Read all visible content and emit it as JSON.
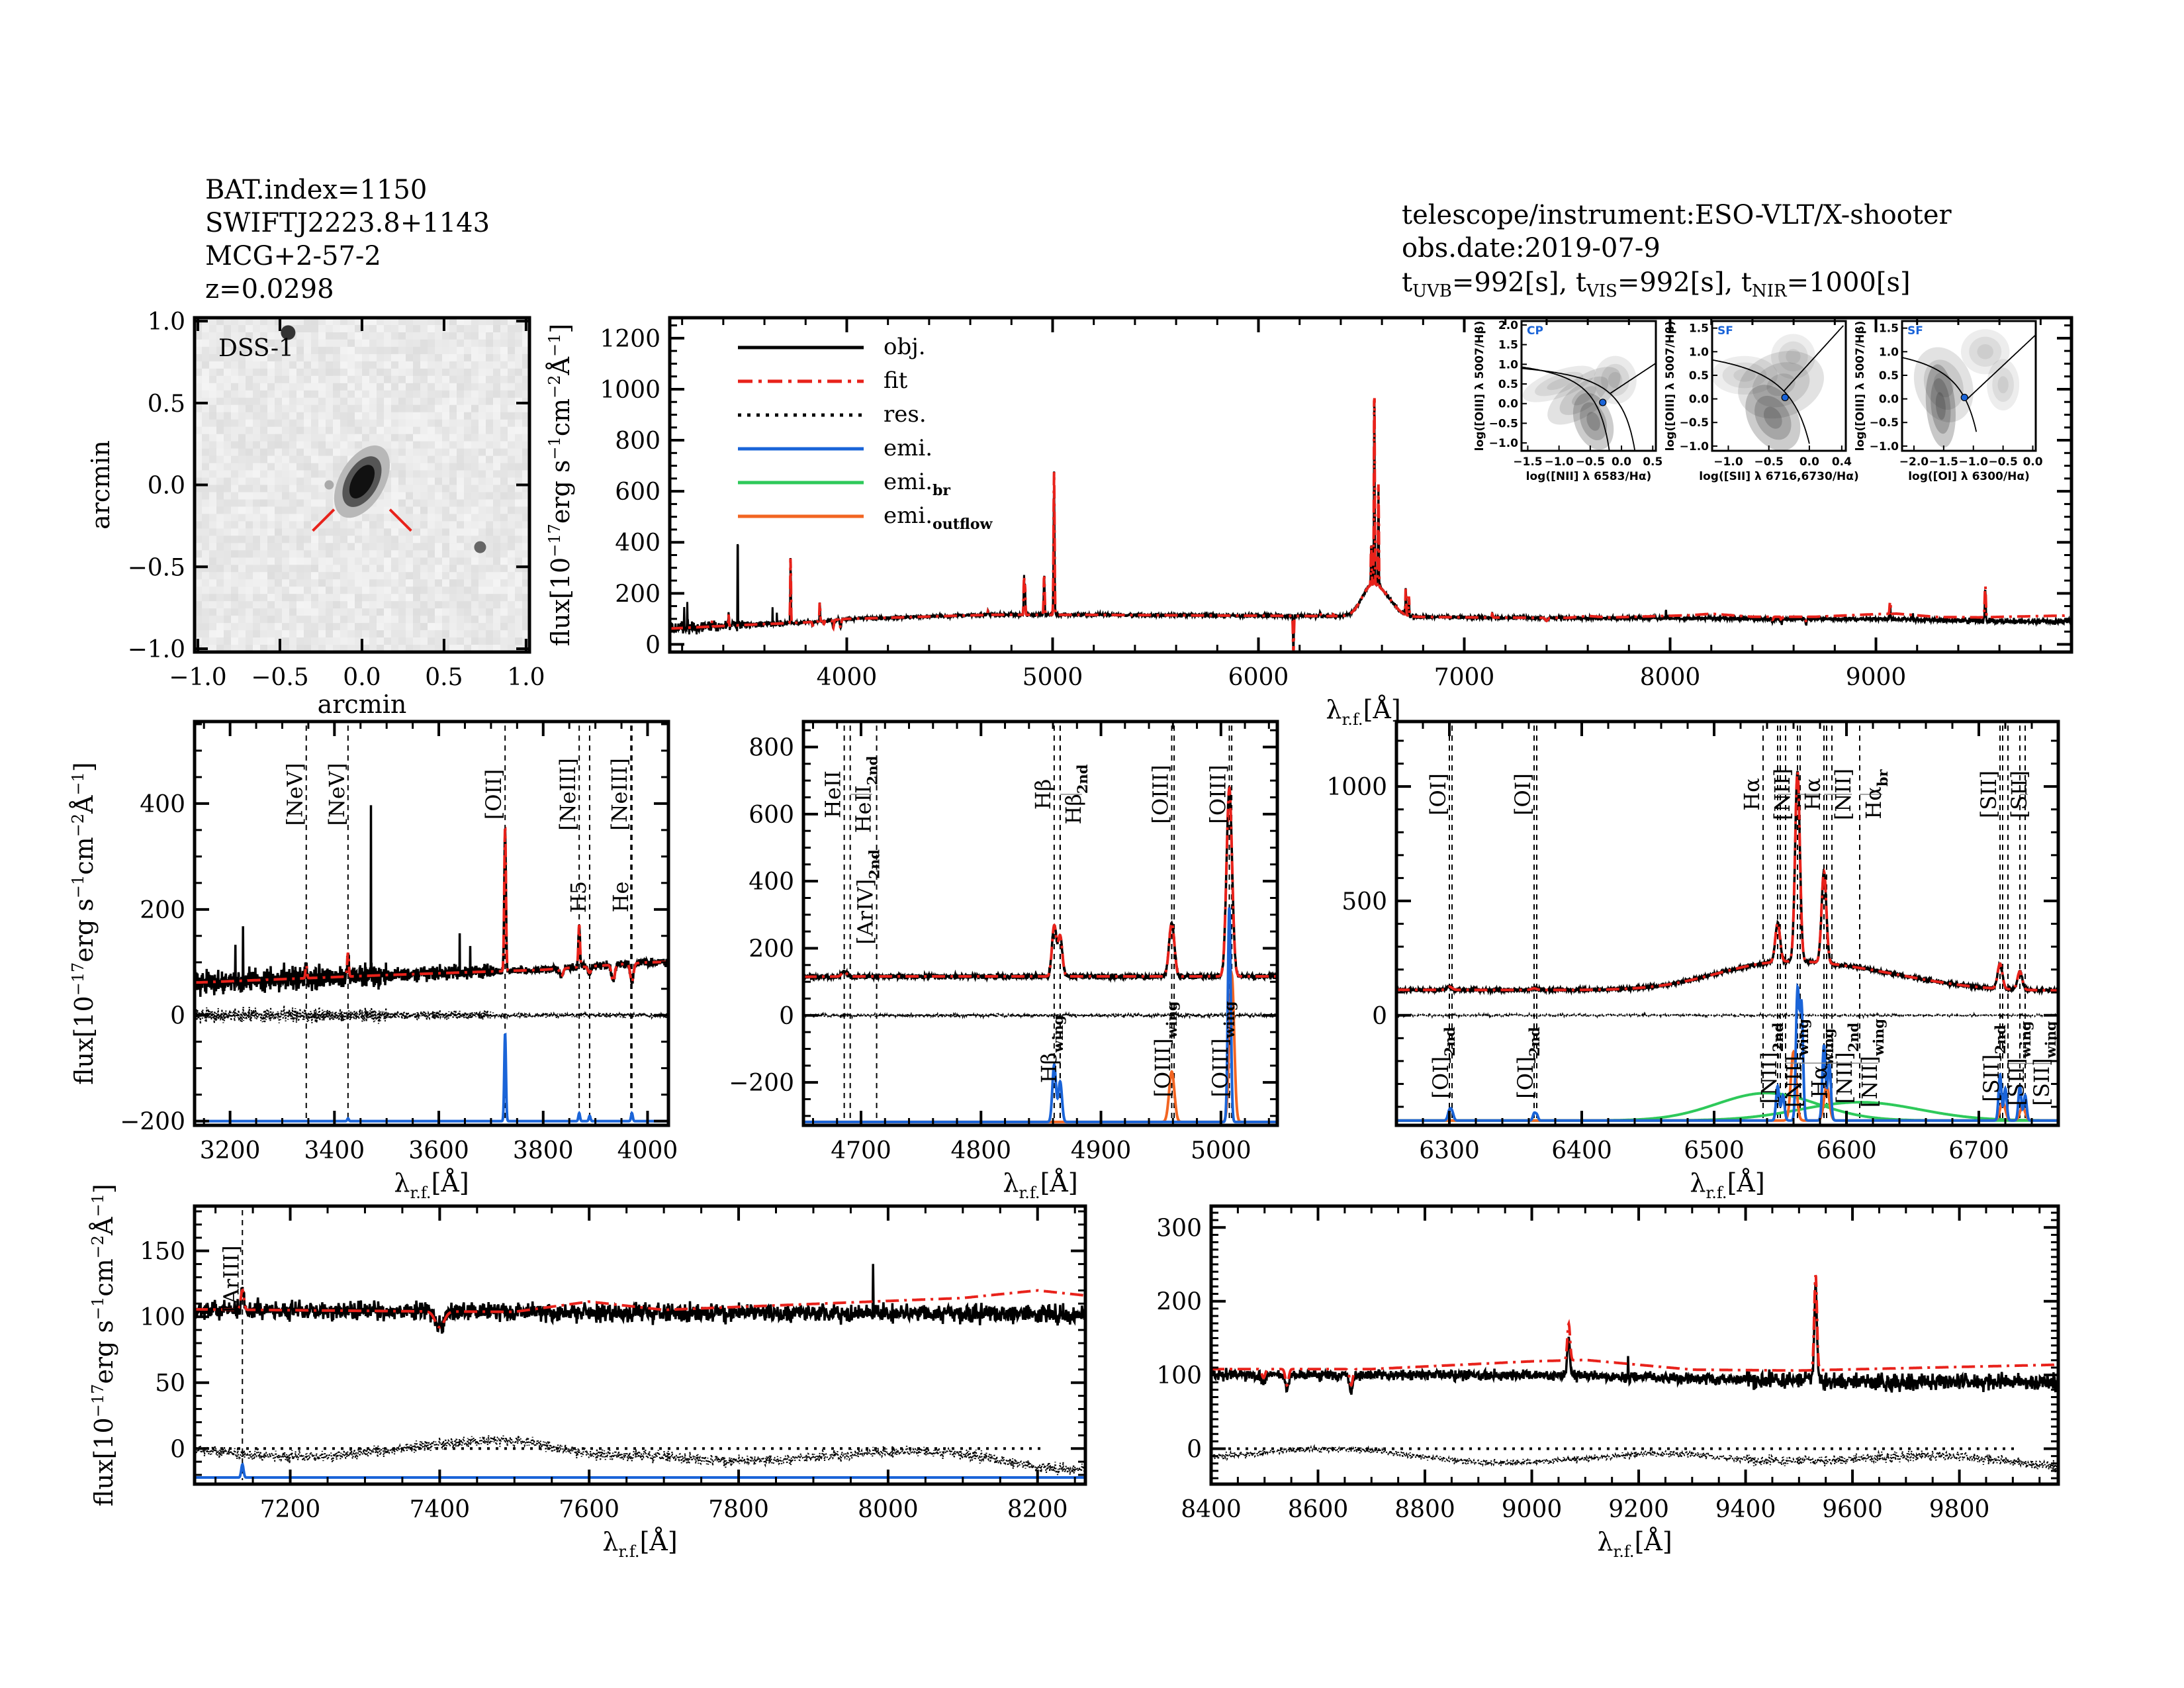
{
  "header": {
    "bat_index": "BAT.index=1150",
    "swift_name": "SWIFTJ2223.8+1143",
    "galaxy_name": "MCG+2-57-2",
    "redshift": "z=0.0298",
    "instrument": "telescope/instrument:ESO-VLT/X-shooter",
    "obs_date": "obs.date:2019-07-9",
    "exposure": {
      "t": "t",
      "uvb_sub": "UVB",
      "uvb_val": "=992[s], ",
      "vis_sub": "VIS",
      "vis_val": "=992[s], ",
      "nir_sub": "NIR",
      "nir_val": "=1000[s]"
    }
  },
  "image": {
    "label": "DSS-1",
    "xlabel": "arcmin",
    "ylabel": "arcmin",
    "ticks": [
      -1.0,
      -0.5,
      0.0,
      0.5,
      1.0
    ],
    "tick_labels": [
      "−1.0",
      "−0.5",
      "0.0",
      "0.5",
      "1.0"
    ],
    "marker_color": "#e8221b"
  },
  "axis_labels": {
    "flux_parts": [
      "flux[10",
      "−17",
      "erg s",
      "−1",
      "cm",
      "−2",
      "Å",
      "−1",
      "]"
    ],
    "lambda": "λ",
    "lambda_sub": "r.f.",
    "lambda_unit": "[Å]"
  },
  "legend": [
    {
      "label": "obj.",
      "sub": "",
      "color": "#000000",
      "style": "solid"
    },
    {
      "label": "fit",
      "sub": "",
      "color": "#e8221b",
      "style": "dashdot"
    },
    {
      "label": "res.",
      "sub": "",
      "color": "#000000",
      "style": "dotted"
    },
    {
      "label": "emi.",
      "sub": "",
      "color": "#1a64d8",
      "style": "solid"
    },
    {
      "label": "emi.",
      "sub": "br",
      "color": "#2ec95a",
      "style": "solid"
    },
    {
      "label": "emi.",
      "sub": "outflow",
      "color": "#f26522",
      "style": "solid"
    }
  ],
  "colors": {
    "obj": "#000000",
    "fit": "#e8221b",
    "emi": "#1a64d8",
    "br": "#2ec95a",
    "outflow": "#f26522",
    "bpt_point": "#1a64d8"
  },
  "bpt": [
    {
      "class": "CP",
      "xlabel": "log([NII] λ 6583/Hα)",
      "ylabel": "log([OIII] λ 5007/Hβ)",
      "xlim": [
        -1.6,
        0.55
      ],
      "ylim": [
        -1.2,
        2.1
      ],
      "xticks": [
        -1.5,
        -1.0,
        -0.5,
        0.0,
        0.5
      ],
      "xtick_labels": [
        "−1.5",
        "−1.0",
        "−0.5",
        "0.0",
        "0.5"
      ],
      "yticks": [
        -1.0,
        -0.5,
        0.0,
        0.5,
        1.0,
        1.5,
        2.0
      ],
      "ytick_labels": [
        "−1.0",
        "−0.5",
        "0.0",
        "0.5",
        "1.0",
        "1.5",
        "2.0"
      ],
      "point": [
        -0.3,
        0.03
      ]
    },
    {
      "class": "SF",
      "xlabel": "log([SII] λ 6716,6730/Hα)",
      "ylabel": "log([OIII] λ 5007/Hβ)",
      "xlim": [
        -1.2,
        0.45
      ],
      "ylim": [
        -1.1,
        1.65
      ],
      "xticks": [
        -1.0,
        -0.5,
        0.0,
        0.4
      ],
      "xtick_labels": [
        "−1.0",
        "−0.5",
        "0.0",
        "0.4"
      ],
      "yticks": [
        -1.0,
        -0.5,
        0.0,
        0.5,
        1.0,
        1.5
      ],
      "ytick_labels": [
        "−1.0",
        "−0.5",
        "0.0",
        "0.5",
        "1.0",
        "1.5"
      ],
      "point": [
        -0.3,
        0.03
      ]
    },
    {
      "class": "SF",
      "xlabel": "log([OI] λ 6300/Hα)",
      "ylabel": "log([OIII] λ 5007/Hβ)",
      "xlim": [
        -2.2,
        0.05
      ],
      "ylim": [
        -1.1,
        1.65
      ],
      "xticks": [
        -2.0,
        -1.5,
        -1.0,
        -0.5,
        0.0
      ],
      "xtick_labels": [
        "−2.0",
        "−1.5",
        "−1.0",
        "−0.5",
        "0.0"
      ],
      "yticks": [
        -1.0,
        -0.5,
        0.0,
        0.5,
        1.0,
        1.5
      ],
      "ytick_labels": [
        "−1.0",
        "−0.5",
        "0.0",
        "0.5",
        "1.0",
        "1.5"
      ],
      "point": [
        -1.15,
        0.03
      ]
    }
  ],
  "model": {
    "continuum_knots": [
      [
        3140,
        62
      ],
      [
        3500,
        76
      ],
      [
        3800,
        86
      ],
      [
        4000,
        100
      ],
      [
        4100,
        102
      ],
      [
        4700,
        116
      ],
      [
        5100,
        116
      ],
      [
        6300,
        111
      ],
      [
        7000,
        106
      ],
      [
        7400,
        104
      ],
      [
        8200,
        102
      ],
      [
        8400,
        100
      ],
      [
        9000,
        100
      ],
      [
        9500,
        92
      ],
      [
        9990,
        90
      ]
    ],
    "fit_excess_knots": [
      [
        3140,
        0
      ],
      [
        7500,
        0
      ],
      [
        7600,
        8
      ],
      [
        7700,
        2
      ],
      [
        8100,
        12
      ],
      [
        8200,
        18
      ],
      [
        8400,
        8
      ],
      [
        8700,
        8
      ],
      [
        9100,
        22
      ],
      [
        9300,
        12
      ],
      [
        9500,
        14
      ],
      [
        9990,
        24
      ]
    ],
    "emission_lines": [
      [
        3346,
        25,
        1.5
      ],
      [
        3426,
        45,
        1.5
      ],
      [
        3727,
        270,
        1.6
      ],
      [
        3869,
        80,
        1.6
      ],
      [
        4686,
        15,
        2
      ],
      [
        4861,
        150,
        1.8
      ],
      [
        4866,
        120,
        1.8
      ],
      [
        4959,
        160,
        2.2
      ],
      [
        5007,
        560,
        2.3
      ],
      [
        6300,
        14,
        2
      ],
      [
        6364,
        7,
        2
      ],
      [
        6548,
        170,
        1.8
      ],
      [
        6563,
        830,
        1.8
      ],
      [
        6583,
        400,
        1.8
      ],
      [
        6540,
        95,
        45
      ],
      [
        6612,
        70,
        50
      ],
      [
        6716,
        110,
        1.8
      ],
      [
        6731,
        80,
        1.8
      ],
      [
        7136,
        15,
        2
      ],
      [
        9069,
        50,
        2.5
      ],
      [
        9531,
        130,
        2.5
      ]
    ],
    "absorption_lines": [
      [
        3835,
        -15,
        3
      ],
      [
        3889,
        -12,
        3
      ],
      [
        3934,
        -32,
        3
      ],
      [
        3970,
        -35,
        3
      ],
      [
        7400,
        -12,
        6
      ],
      [
        8498,
        -12,
        3
      ],
      [
        8542,
        -22,
        3
      ],
      [
        8662,
        -22,
        3
      ],
      [
        6170,
        -150,
        2
      ]
    ],
    "spikes": [
      [
        3470,
        330
      ],
      [
        3210,
        70
      ],
      [
        3225,
        90
      ],
      [
        3640,
        60
      ],
      [
        3660,
        40
      ],
      [
        7980,
        30
      ],
      [
        9180,
        25
      ]
    ]
  },
  "chart_data": [
    {
      "id": "overview",
      "type": "line",
      "xlim": [
        3140,
        9950
      ],
      "ylim": [
        -30,
        1280
      ],
      "xticks": [
        4000,
        5000,
        6000,
        7000,
        8000,
        9000
      ],
      "xtick_labels": [
        "4000",
        "5000",
        "6000",
        "7000",
        "8000",
        "9000"
      ],
      "yticks": [
        0,
        200,
        400,
        600,
        800,
        1000,
        1200
      ],
      "ytick_labels": [
        "0",
        "200",
        "400",
        "600",
        "800",
        "1000",
        "1200"
      ],
      "xlabel": "λr.f.[Å]",
      "ylabel": "flux",
      "legend_placement": "top-left",
      "markers": [],
      "components": null
    },
    {
      "id": "blue",
      "type": "line",
      "xlim": [
        3132,
        4040
      ],
      "ylim": [
        -208,
        555
      ],
      "xticks": [
        3200,
        3400,
        3600,
        3800,
        4000
      ],
      "xtick_labels": [
        "3200",
        "3400",
        "3600",
        "3800",
        "4000"
      ],
      "yticks": [
        -200,
        0,
        200,
        400
      ],
      "ytick_labels": [
        "−200",
        "0",
        "200",
        "400"
      ],
      "xlabel": "λr.f.[Å]",
      "ylabel": "flux",
      "markers": [
        {
          "x": 3346,
          "label": "[NeV]",
          "sub": "",
          "color": "#e8221b",
          "row": "top"
        },
        {
          "x": 3426,
          "label": "[NeV]",
          "sub": "",
          "color": "#e8221b",
          "row": "top"
        },
        {
          "x": 3727,
          "label": "[OII]",
          "sub": "",
          "color": "#000000",
          "row": "top"
        },
        {
          "x": 3869,
          "label": "[NeIII]",
          "sub": "",
          "color": "#000000",
          "row": "top"
        },
        {
          "x": 3889,
          "label": "H5",
          "sub": "",
          "color": "#000000",
          "row": "mid"
        },
        {
          "x": 3968,
          "label": "[NeIII]",
          "sub": "",
          "color": "#e8221b",
          "row": "top"
        },
        {
          "x": 3970,
          "label": "He",
          "sub": "",
          "color": "#000000",
          "row": "mid"
        }
      ],
      "components": {
        "baseline": -200,
        "emi": [
          [
            3727,
            165,
            1.6
          ],
          [
            3869,
            15,
            1.6
          ],
          [
            3889,
            10,
            1.6
          ],
          [
            3970,
            15,
            1.6
          ],
          [
            3426,
            5,
            1.5
          ]
        ],
        "br": [],
        "outflow": []
      }
    },
    {
      "id": "hbeta",
      "type": "line",
      "xlim": [
        4652,
        5047
      ],
      "ylim": [
        -328,
        876
      ],
      "xticks": [
        4700,
        4800,
        4900,
        5000
      ],
      "xtick_labels": [
        "4700",
        "4800",
        "4900",
        "5000"
      ],
      "yticks": [
        -200,
        0,
        200,
        400,
        600,
        800
      ],
      "ytick_labels": [
        "−200",
        "0",
        "200",
        "400",
        "600",
        "800"
      ],
      "xlabel": "λr.f.[Å]",
      "ylabel": "",
      "markers": [
        {
          "x": 4686,
          "label": "HeII",
          "sub": "",
          "color": "#000000",
          "row": "top"
        },
        {
          "x": 4691,
          "label": "HeII",
          "sub": "2nd",
          "color": "#e8221b",
          "row": "top"
        },
        {
          "x": 4713,
          "label": "[ArIV]",
          "sub": "2nd",
          "color": "#e8221b",
          "row": "mid"
        },
        {
          "x": 4861,
          "label": "Hβ",
          "sub": "",
          "color": "#000000",
          "row": "top"
        },
        {
          "x": 4866,
          "label": "Hβ",
          "sub": "2nd",
          "color": "#000000",
          "row": "top"
        },
        {
          "x": 4866,
          "label": "Hβ",
          "sub": "wing",
          "color": "#000000",
          "row": "low"
        },
        {
          "x": 4959,
          "label": "[OIII]",
          "sub": "",
          "color": "#000000",
          "row": "top"
        },
        {
          "x": 4961,
          "label": "[OIII]",
          "sub": "wing",
          "color": "#000000",
          "row": "low"
        },
        {
          "x": 5007,
          "label": "[OIII]",
          "sub": "",
          "color": "#000000",
          "row": "top"
        },
        {
          "x": 5009,
          "label": "[OIII]",
          "sub": "wing",
          "color": "#000000",
          "row": "low"
        }
      ],
      "components": {
        "baseline": -318,
        "emi": [
          [
            4861,
            170,
            1.5
          ],
          [
            4866,
            120,
            1.5
          ],
          [
            5007,
            640,
            1.2
          ]
        ],
        "br": [],
        "outflow": [
          [
            4959,
            150,
            2.2
          ],
          [
            5009,
            440,
            2.0
          ]
        ]
      }
    },
    {
      "id": "halpha",
      "type": "line",
      "xlim": [
        6260,
        6760
      ],
      "ylim": [
        -481,
        1284
      ],
      "xticks": [
        6300,
        6400,
        6500,
        6600,
        6700
      ],
      "xtick_labels": [
        "6300",
        "6400",
        "6500",
        "6600",
        "6700"
      ],
      "yticks": [
        0,
        500,
        1000
      ],
      "ytick_labels": [
        "0",
        "500",
        "1000"
      ],
      "xlabel": "λr.f.[Å]",
      "ylabel": "",
      "markers": [
        {
          "x": 6300,
          "label": "[OI]",
          "sub": "",
          "color": "#000000",
          "row": "top"
        },
        {
          "x": 6302,
          "label": "[OI]",
          "sub": "2nd",
          "color": "#000000",
          "row": "low"
        },
        {
          "x": 6364,
          "label": "[OI]",
          "sub": "",
          "color": "#000000",
          "row": "top"
        },
        {
          "x": 6366,
          "label": "[OI]",
          "sub": "2nd",
          "color": "#000000",
          "row": "low"
        },
        {
          "x": 6537,
          "label": "Hα",
          "sub": "",
          "color": "#000000",
          "row": "top"
        },
        {
          "x": 6548,
          "label": "[NII]",
          "sub": "",
          "color": "#000000",
          "row": "top"
        },
        {
          "x": 6550,
          "label": "[NII]",
          "sub": "2nd",
          "color": "#000000",
          "row": "low"
        },
        {
          "x": 6554,
          "label": "[NII]",
          "sub": "wing",
          "color": "#000000",
          "row": "low"
        },
        {
          "x": 6563,
          "label": "Hα",
          "sub": "",
          "color": "#000000",
          "row": "top"
        },
        {
          "x": 6565,
          "label": "Hα",
          "sub": "wing",
          "color": "#000000",
          "row": "low"
        },
        {
          "x": 6583,
          "label": "[NII]",
          "sub": "",
          "color": "#000000",
          "row": "top"
        },
        {
          "x": 6585,
          "label": "[NII]",
          "sub": "2nd",
          "color": "#000000",
          "row": "low"
        },
        {
          "x": 6589,
          "label": "[NII]",
          "sub": "wing",
          "color": "#000000",
          "row": "low"
        },
        {
          "x": 6610,
          "label": "Hα",
          "sub": "br",
          "color": "#000000",
          "row": "top"
        },
        {
          "x": 6716,
          "label": "[SII]",
          "sub": "",
          "color": "#000000",
          "row": "top"
        },
        {
          "x": 6718,
          "label": "[SII]",
          "sub": "2nd",
          "color": "#000000",
          "row": "low"
        },
        {
          "x": 6722,
          "label": "[SII]",
          "sub": "wing",
          "color": "#000000",
          "row": "low"
        },
        {
          "x": 6731,
          "label": "[SII]",
          "sub": "",
          "color": "#000000",
          "row": "top"
        },
        {
          "x": 6735,
          "label": "[SII]",
          "sub": "wing",
          "color": "#000000",
          "row": "low"
        }
      ],
      "components": {
        "baseline": -460,
        "emi": [
          [
            6300,
            40,
            1.2
          ],
          [
            6302,
            35,
            1.2
          ],
          [
            6364,
            30,
            1
          ],
          [
            6366,
            25,
            1
          ],
          [
            6548,
            150,
            1.2
          ],
          [
            6552,
            110,
            1.2
          ],
          [
            6563,
            560,
            1.2
          ],
          [
            6566,
            500,
            1.2
          ],
          [
            6583,
            330,
            1.2
          ],
          [
            6587,
            250,
            1.2
          ],
          [
            6716,
            200,
            1.1
          ],
          [
            6720,
            140,
            1.1
          ],
          [
            6731,
            150,
            1.1
          ],
          [
            6735,
            110,
            1.1
          ]
        ],
        "br": [
          [
            6540,
            120,
            38
          ],
          [
            6610,
            80,
            45
          ]
        ],
        "outflow": [
          [
            6560,
            300,
            2
          ],
          [
            6585,
            150,
            2
          ],
          [
            6718,
            80,
            2
          ],
          [
            6733,
            60,
            2
          ]
        ]
      }
    },
    {
      "id": "red",
      "type": "line",
      "xlim": [
        7072,
        8264
      ],
      "ylim": [
        -27,
        184
      ],
      "xticks": [
        7200,
        7400,
        7600,
        7800,
        8000,
        8200
      ],
      "xtick_labels": [
        "7200",
        "7400",
        "7600",
        "7800",
        "8000",
        "8200"
      ],
      "yticks": [
        0,
        50,
        100,
        150
      ],
      "ytick_labels": [
        "0",
        "50",
        "100",
        "150"
      ],
      "xlabel": "λr.f.[Å]",
      "ylabel": "flux",
      "markers": [
        {
          "x": 7136,
          "label": "[ArIII]",
          "sub": "",
          "color": "#000000",
          "row": "top"
        }
      ],
      "components": {
        "baseline": -22,
        "emi": [
          [
            7136,
            10,
            1.5
          ]
        ],
        "br": [],
        "outflow": []
      }
    },
    {
      "id": "nir",
      "type": "line",
      "xlim": [
        8400,
        9985
      ],
      "ylim": [
        -48,
        329
      ],
      "xticks": [
        8400,
        8600,
        8800,
        9000,
        9200,
        9400,
        9600,
        9800
      ],
      "xtick_labels": [
        "8400",
        "8600",
        "8800",
        "9000",
        "9200",
        "9400",
        "9600",
        "9800"
      ],
      "yticks": [
        0,
        100,
        200,
        300
      ],
      "ytick_labels": [
        "0",
        "100",
        "200",
        "300"
      ],
      "xlabel": "λr.f.[Å]",
      "ylabel": "",
      "markers": [],
      "components": null
    }
  ]
}
